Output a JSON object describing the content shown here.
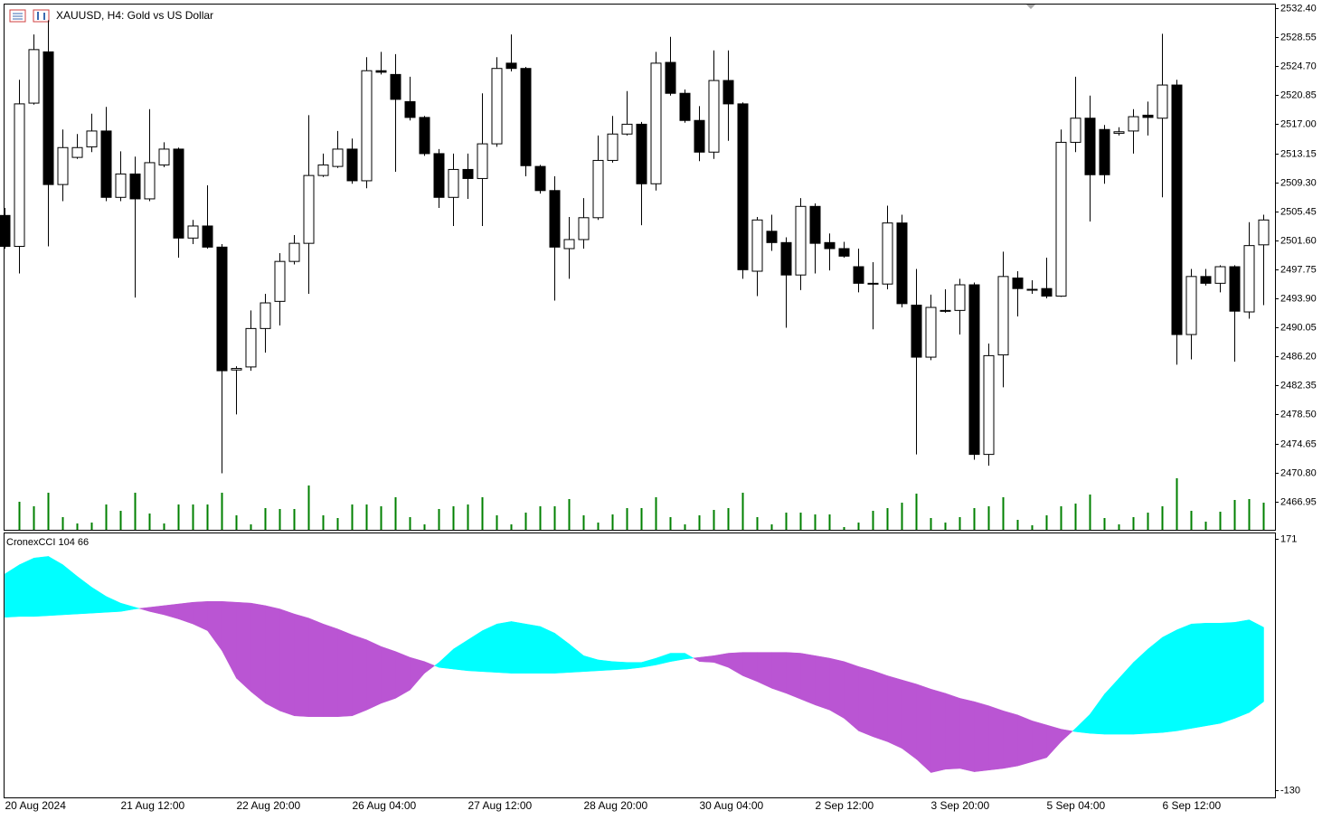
{
  "chart_data": [
    {
      "type": "candlestick",
      "title": "XAUUSD, H4:  Gold vs US Dollar",
      "categories": [
        "20 Aug 2024",
        null,
        null,
        null,
        null,
        null,
        null,
        null,
        "21 Aug 12:00",
        null,
        null,
        null,
        null,
        null,
        null,
        null,
        "22 Aug 20:00",
        null,
        null,
        null,
        null,
        null,
        null,
        null,
        "26 Aug 04:00",
        null,
        null,
        null,
        null,
        null,
        null,
        null,
        "27 Aug 12:00",
        null,
        null,
        null,
        null,
        null,
        null,
        null,
        "28 Aug 20:00",
        null,
        null,
        null,
        null,
        null,
        null,
        null,
        "30 Aug 04:00",
        null,
        null,
        null,
        null,
        null,
        null,
        null,
        "2 Sep 12:00",
        null,
        null,
        null,
        null,
        null,
        null,
        null,
        "3 Sep 20:00",
        null,
        null,
        null,
        null,
        null,
        null,
        null,
        "5 Sep 04:00",
        null,
        null,
        null,
        null,
        null,
        null,
        null,
        "6 Sep 12:00",
        null,
        null,
        null,
        null,
        null,
        null,
        null
      ],
      "open": [
        2504.9,
        2500.8,
        2519.8,
        2526.6,
        2509.0,
        2512.6,
        2514.0,
        2516.1,
        2507.3,
        2510.4,
        2507.1,
        2511.6,
        2513.7,
        2501.9,
        2503.5,
        2500.7,
        2484.4,
        2484.8,
        2489.9,
        2493.5,
        2498.8,
        2501.2,
        2510.2,
        2511.4,
        2513.7,
        2509.5,
        2524.1,
        2523.6,
        2520.0,
        2517.9,
        2513.1,
        2507.3,
        2511.0,
        2509.8,
        2514.4,
        2525.1,
        2524.4,
        2511.4,
        2508.2,
        2500.5,
        2501.7,
        2504.6,
        2512.2,
        2515.7,
        2517.0,
        2509.1,
        2525.2,
        2521.1,
        2517.5,
        2513.3,
        2522.8,
        2519.7,
        2497.5,
        2502.8,
        2501.3,
        2497.0,
        2506.1,
        2501.3,
        2500.5,
        2498.1,
        2495.9,
        2495.8,
        2503.9,
        2493.0,
        2486.1,
        2492.2,
        2492.3,
        2495.7,
        2473.2,
        2486.4,
        2496.6,
        2495.1,
        2495.2,
        2494.2,
        2514.6,
        2517.8,
        2516.3,
        2515.8,
        2516.1,
        2518.2,
        2517.8,
        2522.2,
        2489.1,
        2496.8,
        2495.9,
        2498.1,
        2492.1,
        2501.0
      ],
      "high": [
        2505.9,
        2522.9,
        2528.9,
        2530.8,
        2516.3,
        2515.7,
        2518.4,
        2519.3,
        2513.4,
        2512.7,
        2519.0,
        2514.6,
        2513.9,
        2504.3,
        2508.9,
        2501.1,
        2484.9,
        2492.3,
        2494.5,
        2499.9,
        2502.3,
        2518.2,
        2513.1,
        2516.1,
        2515.1,
        2525.9,
        2526.6,
        2526.3,
        2523.3,
        2518.1,
        2513.7,
        2513.1,
        2513.1,
        2521.1,
        2525.9,
        2528.9,
        2524.6,
        2511.6,
        2510.1,
        2504.7,
        2507.2,
        2515.5,
        2518.1,
        2521.4,
        2517.3,
        2526.6,
        2528.6,
        2521.6,
        2519.4,
        2526.8,
        2526.8,
        2519.9,
        2504.7,
        2505.0,
        2502.0,
        2507.2,
        2506.5,
        2502.5,
        2501.4,
        2500.5,
        2498.7,
        2506.2,
        2505.0,
        2497.8,
        2494.4,
        2495.1,
        2496.5,
        2496.0,
        2487.9,
        2500.1,
        2497.5,
        2496.3,
        2499.3,
        2516.3,
        2523.3,
        2520.8,
        2516.9,
        2516.6,
        2519.0,
        2520.0,
        2529.0,
        2522.9,
        2497.8,
        2497.8,
        2498.3,
        2498.3,
        2504.0,
        2505.0
      ],
      "low": [
        2500.5,
        2497.2,
        2519.6,
        2500.8,
        2506.8,
        2512.4,
        2513.3,
        2506.8,
        2506.8,
        2494.0,
        2506.8,
        2511.3,
        2499.3,
        2501.1,
        2500.5,
        2470.7,
        2478.5,
        2484.3,
        2486.7,
        2490.3,
        2498.4,
        2494.5,
        2510.0,
        2511.2,
        2509.1,
        2508.5,
        2523.6,
        2510.7,
        2517.5,
        2512.8,
        2505.9,
        2503.5,
        2507.1,
        2503.5,
        2514.0,
        2524.0,
        2510.1,
        2507.8,
        2493.6,
        2496.5,
        2500.5,
        2504.3,
        2511.9,
        2515.5,
        2503.6,
        2508.2,
        2520.8,
        2517.2,
        2512.1,
        2512.4,
        2514.8,
        2496.5,
        2494.2,
        2500.2,
        2490.0,
        2495.0,
        2497.2,
        2497.6,
        2499.3,
        2494.7,
        2489.8,
        2495.1,
        2492.7,
        2473.2,
        2485.7,
        2492.0,
        2489.1,
        2472.5,
        2471.7,
        2482.1,
        2491.5,
        2494.5,
        2493.9,
        2494.1,
        2513.3,
        2504.1,
        2509.1,
        2515.5,
        2513.1,
        2515.5,
        2507.3,
        2485.1,
        2485.8,
        2495.6,
        2494.7,
        2485.5,
        2491.2,
        2493.0
      ],
      "close": [
        2500.8,
        2519.7,
        2526.9,
        2509.0,
        2513.9,
        2513.9,
        2516.1,
        2507.3,
        2510.4,
        2507.1,
        2511.9,
        2513.7,
        2501.9,
        2503.5,
        2500.7,
        2484.3,
        2484.6,
        2489.9,
        2493.3,
        2498.8,
        2501.2,
        2510.2,
        2511.6,
        2513.7,
        2509.5,
        2524.1,
        2523.9,
        2520.3,
        2517.9,
        2513.1,
        2507.3,
        2511.0,
        2509.8,
        2514.4,
        2524.4,
        2524.4,
        2511.5,
        2508.2,
        2500.7,
        2501.7,
        2504.6,
        2512.2,
        2515.7,
        2517.0,
        2509.1,
        2525.1,
        2521.1,
        2517.5,
        2513.3,
        2522.8,
        2519.7,
        2497.7,
        2504.3,
        2501.3,
        2497.0,
        2506.1,
        2501.2,
        2500.5,
        2499.5,
        2495.9,
        2495.8,
        2503.9,
        2493.2,
        2486.1,
        2492.7,
        2492.3,
        2495.7,
        2473.2,
        2486.3,
        2496.8,
        2495.2,
        2495.0,
        2494.2,
        2514.6,
        2517.8,
        2510.3,
        2510.3,
        2516.0,
        2518.0,
        2517.9,
        2522.2,
        2489.1,
        2496.8,
        2495.9,
        2498.1,
        2492.2,
        2500.9,
        2504.3
      ],
      "volumes": [
        null,
        31,
        26,
        41,
        14,
        7,
        8,
        28,
        21,
        41,
        18,
        7,
        28,
        28,
        28,
        41,
        16,
        6,
        24,
        23,
        23,
        49,
        16,
        13,
        28,
        28,
        26,
        36,
        14,
        6,
        23,
        26,
        28,
        36,
        16,
        6,
        19,
        26,
        26,
        34,
        16,
        8,
        17,
        24,
        24,
        36,
        14,
        6,
        16,
        22,
        24,
        41,
        14,
        6,
        19,
        19,
        17,
        17,
        3,
        8,
        21,
        24,
        30,
        40,
        13,
        8,
        14,
        24,
        26,
        36,
        11,
        5,
        16,
        26,
        29,
        39,
        13,
        6,
        14,
        19,
        26,
        57,
        21,
        9,
        20,
        33,
        34,
        30
      ],
      "up_color": "#ffffff",
      "down_color": "#000000",
      "volume_color": "#008000",
      "ylim": [
        2463.2,
        2533.0
      ],
      "yticks": [
        {
          "value": 2532.4,
          "label": "2532.40"
        },
        2528.55,
        {
          "value": 2524.7,
          "label": "2524.70"
        },
        2520.85,
        {
          "value": 2517,
          "label": "2517.00"
        },
        2513.15,
        {
          "value": 2509.3,
          "label": "2509.30"
        },
        2505.45,
        {
          "value": 2501.6,
          "label": "2501.60"
        },
        2497.75,
        {
          "value": 2493.9,
          "label": "2493.90"
        },
        2490.05,
        {
          "value": 2486.2,
          "label": "2486.20"
        },
        2482.35,
        {
          "value": 2478.5,
          "label": "2478.50"
        },
        2474.65,
        {
          "value": 2470.8,
          "label": "2470.80"
        },
        2466.95
      ]
    },
    {
      "type": "area",
      "title": "CronexCCI 104 66",
      "series": [
        {
          "color": "#00ffff",
          "values": [
            129,
            140,
            148,
            150,
            140,
            126,
            113,
            102,
            94,
            89,
            84,
            80,
            75,
            69,
            61,
            37,
            4,
            -12,
            -26,
            -35,
            -41,
            -42,
            -42,
            -42,
            -41,
            -34,
            -26,
            -20,
            -10,
            10,
            23,
            39,
            50,
            61,
            69,
            72,
            69,
            66,
            58,
            45,
            31,
            26,
            24,
            23,
            23,
            28,
            34,
            34,
            24,
            23,
            17,
            7,
            0,
            -8,
            -14,
            -21,
            -28,
            -34,
            -44,
            -59,
            -66,
            -72,
            -80,
            -93,
            -109,
            -105,
            -104,
            -108,
            -106,
            -104,
            -101,
            -96,
            -91,
            -72,
            -56,
            -39,
            -15,
            4,
            23,
            39,
            53,
            62,
            69,
            70,
            70,
            71,
            74,
            65
          ]
        },
        {
          "color": "#ba55d3",
          "values": [
            77,
            78,
            78,
            79,
            80,
            81,
            82,
            83,
            84,
            87,
            89,
            91,
            93,
            95,
            96,
            96,
            95,
            94,
            91,
            87,
            81,
            76,
            69,
            63,
            56,
            50,
            42,
            36,
            29,
            24,
            17,
            15,
            13,
            12,
            11,
            10,
            10,
            10,
            10,
            11,
            12,
            13,
            14,
            15,
            17,
            20,
            24,
            27,
            29,
            31,
            34,
            35,
            35,
            35,
            35,
            34,
            31,
            28,
            24,
            18,
            13,
            7,
            2,
            -3,
            -9,
            -14,
            -20,
            -24,
            -29,
            -35,
            -40,
            -47,
            -52,
            -57,
            -60,
            -62,
            -63,
            -63,
            -63,
            -62,
            -61,
            -59,
            -56,
            -53,
            -50,
            -44,
            -37,
            -24
          ]
        }
      ],
      "ylim": [
        -138.7,
        177.5
      ],
      "yticks": [
        171,
        -130
      ]
    }
  ]
}
